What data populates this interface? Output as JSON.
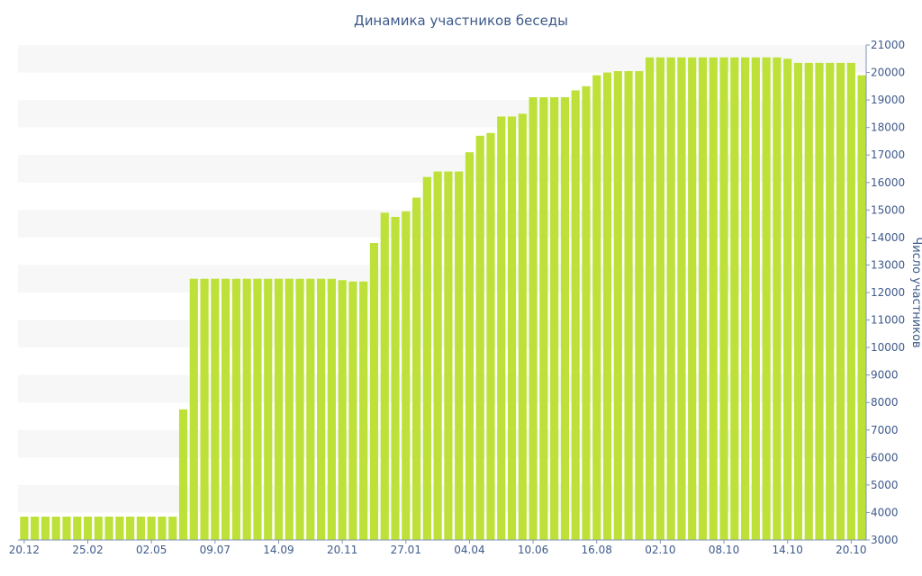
{
  "chart_data": {
    "type": "bar",
    "title": "Динамика участников беседы",
    "ylabel": "Число участников",
    "xlabel": "",
    "ylim": [
      3000,
      21000
    ],
    "yticks": [
      3000,
      4000,
      5000,
      6000,
      7000,
      8000,
      9000,
      10000,
      11000,
      12000,
      13000,
      14000,
      15000,
      16000,
      17000,
      18000,
      19000,
      20000,
      21000
    ],
    "xtick_labels": [
      {
        "index": 0,
        "label": "20.12"
      },
      {
        "index": 6,
        "label": "25.02"
      },
      {
        "index": 12,
        "label": "02.05"
      },
      {
        "index": 18,
        "label": "09.07"
      },
      {
        "index": 24,
        "label": "14.09"
      },
      {
        "index": 30,
        "label": "20.11"
      },
      {
        "index": 36,
        "label": "27.01"
      },
      {
        "index": 42,
        "label": "04.04"
      },
      {
        "index": 48,
        "label": "10.06"
      },
      {
        "index": 54,
        "label": "16.08"
      },
      {
        "index": 60,
        "label": "02.10"
      },
      {
        "index": 66,
        "label": "08.10"
      },
      {
        "index": 72,
        "label": "14.10"
      },
      {
        "index": 78,
        "label": "20.10"
      }
    ],
    "values": [
      3850,
      3850,
      3850,
      3850,
      3850,
      3850,
      3850,
      3850,
      3850,
      3850,
      3850,
      3850,
      3850,
      3850,
      3850,
      7750,
      12500,
      12500,
      12500,
      12500,
      12500,
      12500,
      12500,
      12500,
      12500,
      12500,
      12500,
      12500,
      12500,
      12500,
      12450,
      12400,
      12400,
      13800,
      14900,
      14750,
      14950,
      15450,
      16200,
      16400,
      16400,
      16400,
      17100,
      17700,
      17800,
      18400,
      18400,
      18500,
      19100,
      19100,
      19100,
      19100,
      19350,
      19500,
      19900,
      20000,
      20050,
      20050,
      20050,
      20550,
      20550,
      20550,
      20550,
      20550,
      20550,
      20550,
      20550,
      20550,
      20550,
      20550,
      20550,
      20550,
      20500,
      20350,
      20350,
      20350,
      20350,
      20350,
      20350,
      19900
    ],
    "bar_color": "#bde139",
    "grid": true,
    "axis_position": "right"
  }
}
